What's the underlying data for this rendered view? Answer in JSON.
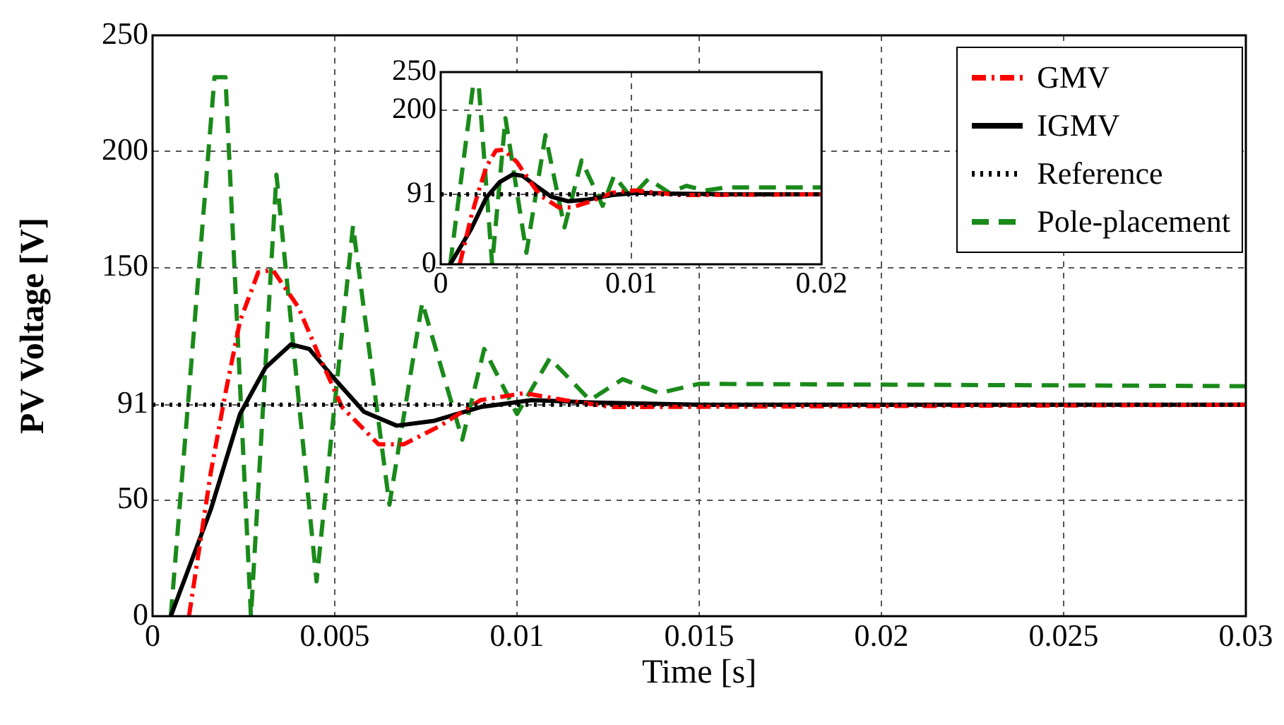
{
  "chart_data": [
    {
      "type": "line",
      "xlabel": "Time [s]",
      "ylabel": "PV Voltage [V]",
      "xlim": [
        0,
        0.03
      ],
      "xticks": [
        0,
        0.005,
        0.01,
        0.015,
        0.02,
        0.025,
        0.03
      ],
      "ylim": [
        0,
        250
      ],
      "yticks": [
        0,
        50,
        91,
        150,
        200,
        250
      ],
      "grid": true,
      "legend": "top right",
      "series": [
        {
          "name": "GMV",
          "color": "#ff0000",
          "line_style": "dashdot",
          "x": [
            0.001,
            0.0016,
            0.002,
            0.0024,
            0.0029,
            0.0033,
            0.004,
            0.0046,
            0.0052,
            0.0062,
            0.0069,
            0.0079,
            0.009,
            0.0102,
            0.0113,
            0.0126,
            0.03
          ],
          "values": [
            0,
            62,
            96,
            127,
            148,
            149,
            133,
            111,
            90,
            74,
            74,
            82,
            93,
            96,
            93,
            90,
            91
          ]
        },
        {
          "name": "IGMV",
          "color": "#000000",
          "line_style": "solid",
          "x": [
            0.0005,
            0.0016,
            0.0024,
            0.0031,
            0.0038,
            0.0043,
            0.005,
            0.0058,
            0.0067,
            0.0077,
            0.009,
            0.0104,
            0.012,
            0.015,
            0.03
          ],
          "values": [
            0,
            46,
            87,
            107,
            117,
            115,
            102,
            88,
            82,
            84,
            90,
            93,
            92,
            91,
            91
          ]
        },
        {
          "name": "Reference",
          "color": "#000000",
          "line_style": "dotted",
          "x": [
            0,
            0.03
          ],
          "values": [
            91,
            91
          ]
        },
        {
          "name": "Pole-placement",
          "color": "#1a8a1a",
          "line_style": "dashed",
          "x": [
            0.0005,
            0.0017,
            0.002,
            0.0027,
            0.0034,
            0.0045,
            0.0055,
            0.0065,
            0.0074,
            0.0085,
            0.0091,
            0.01,
            0.0109,
            0.012,
            0.0129,
            0.0139,
            0.015,
            0.03
          ],
          "values": [
            0,
            232,
            232,
            0,
            190,
            15,
            168,
            48,
            135,
            76,
            115,
            87,
            111,
            93,
            102,
            96,
            100,
            99
          ]
        }
      ]
    },
    {
      "type": "line",
      "xlim": [
        0,
        0.02
      ],
      "xticks": [
        0,
        0.01,
        0.02
      ],
      "ylim": [
        0,
        250
      ],
      "yticks": [
        0,
        91,
        200,
        250
      ],
      "grid": true,
      "series": [
        {
          "color": "#ff0000",
          "line_style": "dashdot",
          "x": [
            0.001,
            0.0016,
            0.002,
            0.0024,
            0.0029,
            0.0033,
            0.004,
            0.0046,
            0.0052,
            0.0062,
            0.0069,
            0.0079,
            0.009,
            0.0102,
            0.0113,
            0.0126,
            0.02
          ],
          "values": [
            0,
            62,
            96,
            127,
            148,
            149,
            133,
            111,
            90,
            74,
            74,
            82,
            93,
            96,
            93,
            90,
            91
          ]
        },
        {
          "color": "#000000",
          "line_style": "solid",
          "x": [
            0.0005,
            0.0016,
            0.0024,
            0.0031,
            0.0038,
            0.0043,
            0.005,
            0.0058,
            0.0067,
            0.0077,
            0.009,
            0.0104,
            0.012,
            0.015,
            0.02
          ],
          "values": [
            0,
            46,
            87,
            107,
            117,
            115,
            102,
            88,
            82,
            84,
            90,
            93,
            92,
            91,
            91
          ]
        },
        {
          "color": "#000000",
          "line_style": "dotted",
          "x": [
            0,
            0.02
          ],
          "values": [
            91,
            91
          ]
        },
        {
          "color": "#1a8a1a",
          "line_style": "dashed",
          "x": [
            0.0005,
            0.0017,
            0.002,
            0.0027,
            0.0034,
            0.0045,
            0.0055,
            0.0065,
            0.0074,
            0.0085,
            0.0091,
            0.01,
            0.0109,
            0.012,
            0.0129,
            0.0139,
            0.015,
            0.02
          ],
          "values": [
            0,
            232,
            232,
            0,
            190,
            15,
            168,
            48,
            135,
            76,
            115,
            87,
            111,
            93,
            102,
            96,
            100,
            100
          ]
        }
      ]
    }
  ]
}
